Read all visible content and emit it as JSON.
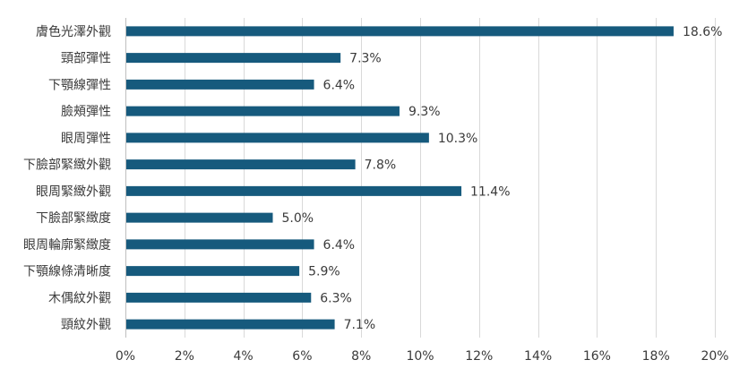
{
  "chart_data": {
    "type": "bar",
    "orientation": "horizontal",
    "title": "",
    "xlabel": "",
    "ylabel": "",
    "categories": [
      "膚色光澤外觀",
      "頸部彈性",
      "下顎線彈性",
      "臉頰彈性",
      "眼周彈性",
      "下臉部緊緻外觀",
      "眼周緊緻外觀",
      "下臉部緊緻度",
      "眼周輪廓緊緻度",
      "下顎線條清晰度",
      "木偶紋外觀",
      "頸紋外觀"
    ],
    "values": [
      18.6,
      7.3,
      6.4,
      9.3,
      10.3,
      7.8,
      11.4,
      5.0,
      6.4,
      5.9,
      6.3,
      7.1
    ],
    "value_labels": [
      "18.6%",
      "7.3%",
      "6.4%",
      "9.3%",
      "10.3%",
      "7.8%",
      "11.4%",
      "5.0%",
      "6.4%",
      "5.9%",
      "6.3%",
      "7.1%"
    ],
    "x_ticks": [
      0,
      2,
      4,
      6,
      8,
      10,
      12,
      14,
      16,
      18,
      20
    ],
    "x_tick_labels": [
      "0%",
      "2%",
      "4%",
      "6%",
      "8%",
      "10%",
      "12%",
      "14%",
      "16%",
      "18%",
      "20%"
    ],
    "xlim": [
      0,
      20
    ],
    "grid": true,
    "legend": "none",
    "bar_color": "#165a7d"
  }
}
